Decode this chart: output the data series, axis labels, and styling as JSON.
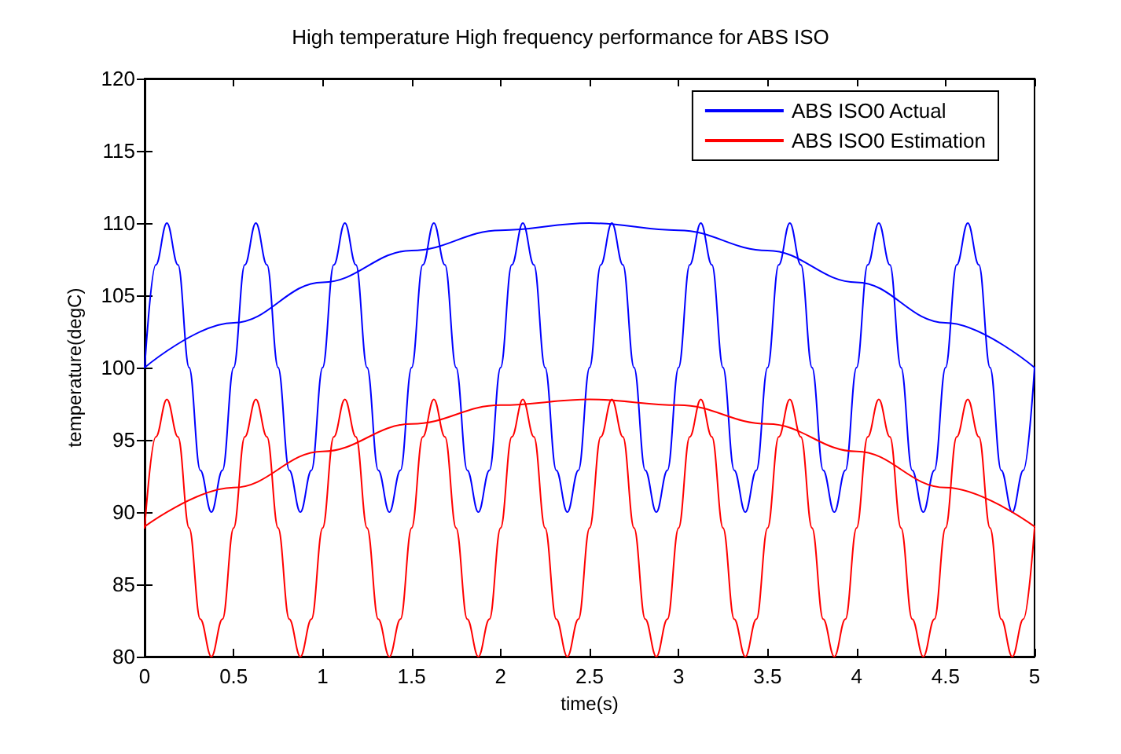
{
  "chart_data": {
    "type": "line",
    "title": "High temperature High frequency performance for ABS ISO",
    "xlabel": "time(s)",
    "ylabel": "temperature(degC)",
    "x": [
      0,
      0.0625,
      0.125,
      0.1875,
      0.25,
      0.3125,
      0.375,
      0.4375,
      0.5,
      0.5625,
      0.625,
      0.6875,
      0.75,
      0.8125,
      0.875,
      0.9375,
      1,
      1.0625,
      1.125,
      1.1875,
      1.25,
      1.3125,
      1.375,
      1.4375,
      1.5,
      1.5625,
      1.625,
      1.6875,
      1.75,
      1.8125,
      1.875,
      1.9375,
      2,
      2.0625,
      2.125,
      2.1875,
      2.25,
      2.3125,
      2.375,
      2.4375,
      2.5,
      2.5625,
      2.625,
      2.6875,
      2.75,
      2.8125,
      2.875,
      2.9375,
      3,
      3.0625,
      3.125,
      3.1875,
      3.25,
      3.3125,
      3.375,
      3.4375,
      3.5,
      3.5625,
      3.625,
      3.6875,
      3.75,
      3.8125,
      3.875,
      3.9375,
      4,
      4.0625,
      4.125,
      4.1875,
      4.25,
      4.3125,
      4.375,
      4.4375,
      4.5,
      4.5625,
      4.625,
      4.6875,
      4.75,
      4.8125,
      4.875,
      4.9375,
      5
    ],
    "series": [
      {
        "name": "ABS ISO0 Actual",
        "color": "#0000ff",
        "values": [
          100,
          107.1,
          110,
          107.1,
          100,
          92.9,
          90,
          92.9,
          100,
          107.1,
          110,
          107.1,
          100,
          92.9,
          90,
          92.9,
          100,
          107.1,
          110,
          107.1,
          100,
          92.9,
          90,
          92.9,
          100,
          107.1,
          110,
          107.1,
          100,
          92.9,
          90,
          92.9,
          100,
          107.1,
          110,
          107.1,
          100,
          92.9,
          90,
          92.9,
          100,
          107.1,
          110,
          107.1,
          100,
          92.9,
          90,
          92.9,
          100,
          107.1,
          110,
          107.1,
          100,
          92.9,
          90,
          92.9,
          100,
          107.1,
          110,
          107.1,
          100,
          92.9,
          90,
          92.9,
          100,
          107.1,
          110,
          107.1,
          100,
          92.9,
          90,
          92.9,
          100,
          107.1,
          110,
          107.1,
          100,
          92.9,
          90,
          92.9,
          100
        ]
      },
      {
        "name": "ABS ISO0 Estimation",
        "color": "#ff0000",
        "values": [
          88.9,
          95.2,
          97.8,
          95.2,
          88.9,
          82.6,
          80,
          82.6,
          88.9,
          95.2,
          97.8,
          95.2,
          88.9,
          82.6,
          80,
          82.6,
          88.9,
          95.2,
          97.8,
          95.2,
          88.9,
          82.6,
          80,
          82.6,
          88.9,
          95.2,
          97.8,
          95.2,
          88.9,
          82.6,
          80,
          82.6,
          88.9,
          95.2,
          97.8,
          95.2,
          88.9,
          82.6,
          80,
          82.6,
          88.9,
          95.2,
          97.8,
          95.2,
          88.9,
          82.6,
          80,
          82.6,
          88.9,
          95.2,
          97.8,
          95.2,
          88.9,
          82.6,
          80,
          82.6,
          88.9,
          95.2,
          97.8,
          95.2,
          88.9,
          82.6,
          80,
          82.6,
          88.9,
          95.2,
          97.8,
          95.2,
          88.9,
          82.6,
          80,
          82.6,
          88.9,
          95.2,
          97.8,
          95.2,
          88.9,
          82.6,
          80,
          82.6,
          88.9
        ]
      },
      {
        "color": "#0000ff",
        "x": [
          0,
          0.5,
          1,
          1.5,
          2,
          2.5,
          3,
          3.5,
          4,
          4.5,
          5
        ],
        "values": [
          100,
          103.1,
          105.9,
          108.1,
          109.5,
          110,
          109.5,
          108.1,
          105.9,
          103.1,
          100
        ]
      },
      {
        "color": "#ff0000",
        "x": [
          0,
          0.5,
          1,
          1.5,
          2,
          2.5,
          3,
          3.5,
          4,
          4.5,
          5
        ],
        "values": [
          89,
          91.7,
          94.2,
          96.1,
          97.4,
          97.8,
          97.4,
          96.1,
          94.2,
          91.7,
          89
        ]
      }
    ],
    "xlim": [
      0,
      5
    ],
    "xticks": [
      0,
      0.5,
      1,
      1.5,
      2,
      2.5,
      3,
      3.5,
      4,
      4.5,
      5
    ],
    "ylim": [
      80,
      120
    ],
    "yticks": [
      80,
      85,
      90,
      95,
      100,
      105,
      110,
      115,
      120
    ],
    "grid": false,
    "legend": "top right",
    "marker": "none",
    "line_style": "solid"
  }
}
